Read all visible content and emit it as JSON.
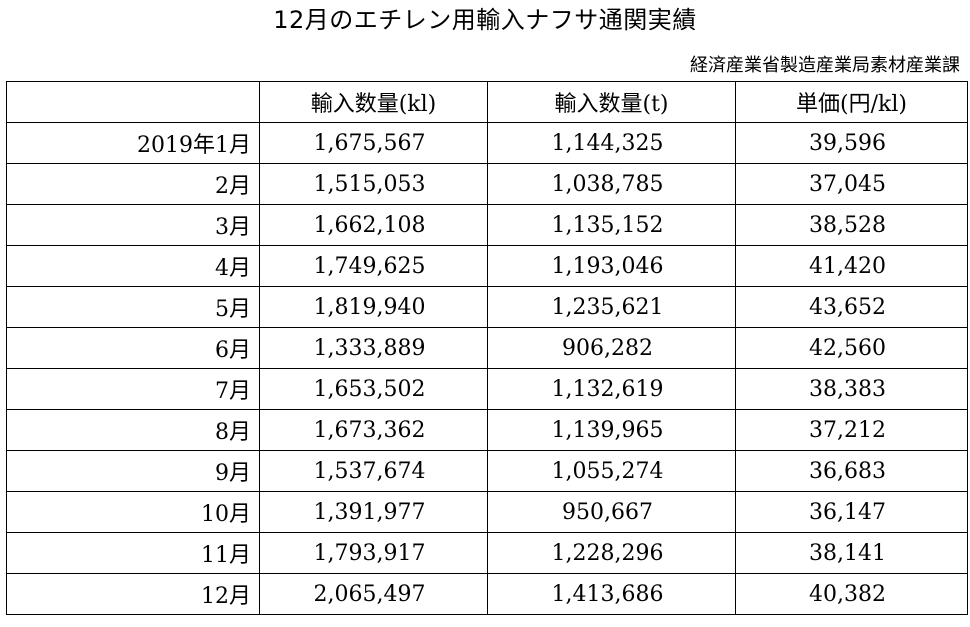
{
  "document": {
    "title": "12月のエチレン用輸入ナフサ通関実績",
    "source": "経済産業省製造産業局素材産業課"
  },
  "table": {
    "columns": [
      "",
      "輸入数量(kl)",
      "輸入数量(t)",
      "単価(円/kl)"
    ],
    "rows": [
      {
        "period": "2019年1月",
        "volume_kl": "1,675,567",
        "volume_t": "1,144,325",
        "unit_price": "39,596"
      },
      {
        "period": "2月",
        "volume_kl": "1,515,053",
        "volume_t": "1,038,785",
        "unit_price": "37,045"
      },
      {
        "period": "3月",
        "volume_kl": "1,662,108",
        "volume_t": "1,135,152",
        "unit_price": "38,528"
      },
      {
        "period": "4月",
        "volume_kl": "1,749,625",
        "volume_t": "1,193,046",
        "unit_price": "41,420"
      },
      {
        "period": "5月",
        "volume_kl": "1,819,940",
        "volume_t": "1,235,621",
        "unit_price": "43,652"
      },
      {
        "period": "6月",
        "volume_kl": "1,333,889",
        "volume_t": "906,282",
        "unit_price": "42,560"
      },
      {
        "period": "7月",
        "volume_kl": "1,653,502",
        "volume_t": "1,132,619",
        "unit_price": "38,383"
      },
      {
        "period": "8月",
        "volume_kl": "1,673,362",
        "volume_t": "1,139,965",
        "unit_price": "37,212"
      },
      {
        "period": "9月",
        "volume_kl": "1,537,674",
        "volume_t": "1,055,274",
        "unit_price": "36,683"
      },
      {
        "period": "10月",
        "volume_kl": "1,391,977",
        "volume_t": "950,667",
        "unit_price": "36,147"
      },
      {
        "period": "11月",
        "volume_kl": "1,793,917",
        "volume_t": "1,228,296",
        "unit_price": "38,141"
      },
      {
        "period": "12月",
        "volume_kl": "2,065,497",
        "volume_t": "1,413,686",
        "unit_price": "40,382"
      }
    ]
  }
}
